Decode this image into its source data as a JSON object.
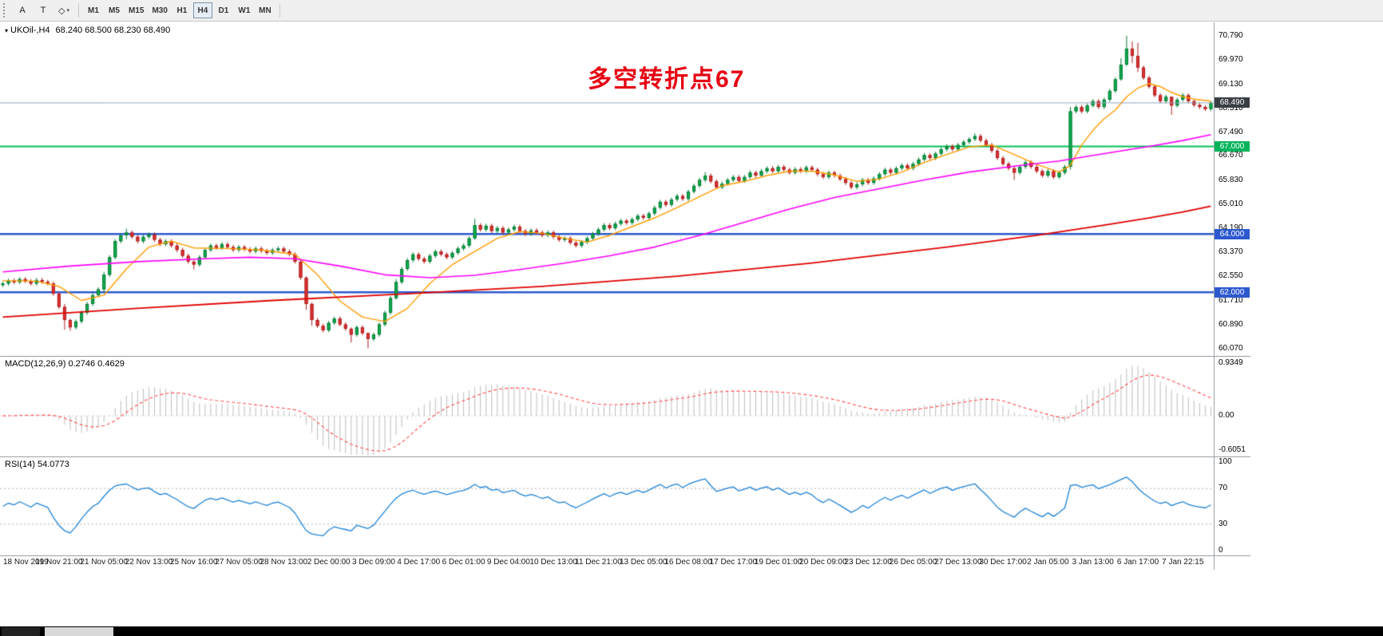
{
  "toolbar": {
    "tools": [
      {
        "name": "text-label-tool",
        "glyph": "A"
      },
      {
        "name": "text-box-tool",
        "glyph": "T"
      },
      {
        "name": "drawing-tools-dropdown",
        "glyph": "◇",
        "caret": "▾"
      }
    ],
    "timeframes": [
      "M1",
      "M5",
      "M15",
      "M30",
      "H1",
      "H4",
      "D1",
      "W1",
      "MN"
    ],
    "active_timeframe": "H4"
  },
  "chart": {
    "symbol_label": "UKOil-,H4",
    "ohlc_text": "68.240 68.500 68.230 68.490",
    "annotation_text": "多空转折点67",
    "annotation_color": "#e60012",
    "price_axis_labels": [
      "70.790",
      "69.970",
      "69.130",
      "68.310",
      "67.490",
      "66.670",
      "65.830",
      "65.010",
      "64.190",
      "63.370",
      "62.550",
      "61.710",
      "60.890",
      "60.070"
    ],
    "price_range": {
      "min": 59.82,
      "max": 71.25
    },
    "price_tags": [
      {
        "text": "68.490",
        "value": 68.49,
        "bg": "#3a3f45",
        "line_color": "#8fa8bf",
        "line_width": 1,
        "kind": "current-price"
      },
      {
        "text": "67.000",
        "value": 67.0,
        "bg": "#00b35a",
        "line_color": "#00c257",
        "line_width": 2,
        "kind": "level"
      },
      {
        "text": "64.000",
        "value": 64.0,
        "bg": "#2d59cf",
        "line_color": "#2d59cf",
        "line_width": 2.5,
        "kind": "level"
      },
      {
        "text": "62.000",
        "value": 62.0,
        "bg": "#2d59cf",
        "line_color": "#2d59cf",
        "line_width": 2.5,
        "kind": "level"
      }
    ],
    "up_fill": "#0fae4e",
    "up_stroke": "#0a7a38",
    "down_fill": "#e23434",
    "down_stroke": "#aa1f1f"
  },
  "chart_data": {
    "type": "candlestick",
    "symbol": "UKOil-",
    "timeframe": "H4",
    "ohlc_current": {
      "open": 68.24,
      "high": 68.5,
      "low": 68.23,
      "close": 68.49
    },
    "y_range": [
      59.82,
      71.25
    ],
    "bars_per_label": 8,
    "first_label_bar": 2,
    "open_first": 62.25,
    "closes": [
      62.3,
      62.4,
      62.35,
      62.45,
      62.38,
      62.3,
      62.42,
      62.36,
      62.3,
      61.95,
      61.5,
      61.05,
      60.8,
      61.0,
      61.3,
      61.6,
      61.9,
      62.1,
      62.6,
      63.2,
      63.75,
      63.95,
      64.05,
      63.9,
      63.75,
      63.9,
      63.98,
      63.8,
      63.65,
      63.75,
      63.6,
      63.45,
      63.25,
      63.05,
      62.95,
      63.2,
      63.45,
      63.6,
      63.52,
      63.65,
      63.55,
      63.45,
      63.55,
      63.48,
      63.4,
      63.5,
      63.42,
      63.35,
      63.45,
      63.5,
      63.4,
      63.3,
      63.05,
      62.5,
      61.6,
      61.05,
      60.85,
      60.7,
      60.95,
      61.1,
      60.9,
      60.75,
      60.55,
      60.8,
      60.6,
      60.4,
      60.55,
      60.9,
      61.3,
      61.8,
      62.35,
      62.8,
      63.1,
      63.3,
      63.15,
      63.05,
      63.25,
      63.4,
      63.3,
      63.2,
      63.35,
      63.5,
      63.6,
      63.85,
      64.3,
      64.15,
      64.28,
      64.1,
      64.2,
      64.05,
      64.15,
      64.25,
      64.1,
      64.0,
      64.12,
      64.05,
      63.95,
      64.05,
      63.9,
      63.8,
      63.85,
      63.7,
      63.6,
      63.72,
      63.85,
      64.0,
      64.15,
      64.3,
      64.2,
      64.35,
      64.45,
      64.38,
      64.5,
      64.62,
      64.55,
      64.7,
      64.9,
      65.1,
      65.0,
      65.18,
      65.3,
      65.2,
      65.45,
      65.65,
      65.85,
      66.0,
      65.8,
      65.6,
      65.72,
      65.85,
      65.95,
      65.82,
      65.95,
      66.1,
      66.0,
      66.15,
      66.25,
      66.15,
      66.3,
      66.2,
      66.1,
      66.22,
      66.15,
      66.28,
      66.2,
      66.05,
      65.95,
      66.1,
      66.0,
      65.88,
      65.75,
      65.6,
      65.7,
      65.85,
      65.75,
      65.9,
      66.05,
      66.2,
      66.1,
      66.25,
      66.35,
      66.25,
      66.4,
      66.55,
      66.7,
      66.6,
      66.75,
      66.9,
      67.0,
      66.9,
      67.05,
      67.15,
      67.25,
      67.35,
      67.2,
      67.05,
      66.85,
      66.6,
      66.4,
      66.25,
      66.1,
      66.3,
      66.45,
      66.3,
      66.15,
      66.0,
      66.15,
      65.95,
      66.1,
      66.3,
      68.2,
      68.35,
      68.2,
      68.4,
      68.55,
      68.35,
      68.6,
      68.9,
      69.3,
      69.8,
      70.35,
      70.1,
      69.7,
      69.35,
      69.05,
      68.75,
      68.55,
      68.7,
      68.4,
      68.6,
      68.75,
      68.55,
      68.42,
      68.35,
      68.28,
      68.49
    ],
    "wick_overrides": [
      [
        11,
        61.6,
        60.72
      ],
      [
        12,
        61.1,
        60.68
      ],
      [
        18,
        62.7,
        62.0
      ],
      [
        22,
        64.18,
        63.82
      ],
      [
        34,
        63.1,
        62.78
      ],
      [
        54,
        62.55,
        61.4
      ],
      [
        55,
        61.65,
        60.85
      ],
      [
        62,
        60.8,
        60.28
      ],
      [
        65,
        60.62,
        60.08
      ],
      [
        70,
        62.45,
        61.75
      ],
      [
        84,
        64.52,
        63.8
      ],
      [
        125,
        66.12,
        65.78
      ],
      [
        173,
        67.45,
        67.18
      ],
      [
        180,
        66.32,
        65.85
      ],
      [
        190,
        68.35,
        66.2
      ],
      [
        199,
        70.02,
        69.25
      ],
      [
        200,
        70.79,
        69.75
      ],
      [
        201,
        70.6,
        69.85
      ],
      [
        202,
        70.55,
        69.55
      ],
      [
        208,
        68.62,
        68.08
      ]
    ],
    "moving_averages": [
      {
        "name": "ma-fast",
        "color": "#ff9c00",
        "width": 1.4,
        "points": [
          [
            0,
            62.4
          ],
          [
            6,
            62.38
          ],
          [
            10,
            62.2
          ],
          [
            14,
            61.72
          ],
          [
            18,
            61.9
          ],
          [
            22,
            62.8
          ],
          [
            26,
            63.55
          ],
          [
            30,
            63.75
          ],
          [
            34,
            63.52
          ],
          [
            40,
            63.5
          ],
          [
            46,
            63.45
          ],
          [
            52,
            63.3
          ],
          [
            56,
            62.6
          ],
          [
            60,
            61.7
          ],
          [
            64,
            61.15
          ],
          [
            68,
            61.0
          ],
          [
            72,
            61.45
          ],
          [
            76,
            62.3
          ],
          [
            80,
            62.95
          ],
          [
            84,
            63.4
          ],
          [
            88,
            63.85
          ],
          [
            92,
            64.08
          ],
          [
            96,
            64.02
          ],
          [
            100,
            63.85
          ],
          [
            104,
            63.72
          ],
          [
            108,
            63.95
          ],
          [
            112,
            64.25
          ],
          [
            116,
            64.55
          ],
          [
            120,
            64.9
          ],
          [
            124,
            65.28
          ],
          [
            128,
            65.65
          ],
          [
            132,
            65.8
          ],
          [
            136,
            66.0
          ],
          [
            140,
            66.15
          ],
          [
            144,
            66.15
          ],
          [
            148,
            66.02
          ],
          [
            152,
            65.8
          ],
          [
            156,
            65.88
          ],
          [
            160,
            66.12
          ],
          [
            164,
            66.45
          ],
          [
            168,
            66.72
          ],
          [
            172,
            66.98
          ],
          [
            176,
            67.05
          ],
          [
            180,
            66.72
          ],
          [
            184,
            66.38
          ],
          [
            188,
            66.12
          ],
          [
            190,
            66.35
          ],
          [
            192,
            67.05
          ],
          [
            194,
            67.55
          ],
          [
            196,
            67.95
          ],
          [
            198,
            68.25
          ],
          [
            200,
            68.7
          ],
          [
            202,
            69.0
          ],
          [
            204,
            69.15
          ],
          [
            206,
            69.05
          ],
          [
            208,
            68.85
          ],
          [
            210,
            68.7
          ],
          [
            212,
            68.62
          ],
          [
            215,
            68.55
          ]
        ]
      },
      {
        "name": "ma-mid",
        "color": "#ff00ff",
        "width": 1.6,
        "points": [
          [
            0,
            62.7
          ],
          [
            12,
            62.9
          ],
          [
            24,
            63.05
          ],
          [
            36,
            63.15
          ],
          [
            44,
            63.2
          ],
          [
            52,
            63.15
          ],
          [
            60,
            62.9
          ],
          [
            68,
            62.6
          ],
          [
            76,
            62.5
          ],
          [
            84,
            62.58
          ],
          [
            92,
            62.78
          ],
          [
            100,
            63.0
          ],
          [
            108,
            63.25
          ],
          [
            116,
            63.55
          ],
          [
            124,
            63.95
          ],
          [
            132,
            64.4
          ],
          [
            140,
            64.85
          ],
          [
            148,
            65.25
          ],
          [
            156,
            65.55
          ],
          [
            164,
            65.85
          ],
          [
            172,
            66.12
          ],
          [
            180,
            66.32
          ],
          [
            188,
            66.5
          ],
          [
            196,
            66.75
          ],
          [
            204,
            67.0
          ],
          [
            210,
            67.2
          ],
          [
            215,
            67.4
          ]
        ]
      },
      {
        "name": "ma-slow",
        "color": "#e00000",
        "width": 1.8,
        "points": [
          [
            0,
            61.15
          ],
          [
            24,
            61.45
          ],
          [
            48,
            61.72
          ],
          [
            72,
            61.95
          ],
          [
            96,
            62.2
          ],
          [
            120,
            62.55
          ],
          [
            144,
            63.0
          ],
          [
            168,
            63.55
          ],
          [
            184,
            63.95
          ],
          [
            196,
            64.3
          ],
          [
            204,
            64.55
          ],
          [
            210,
            64.75
          ],
          [
            215,
            64.95
          ]
        ]
      }
    ],
    "horizontal_levels": [
      62.0,
      64.0,
      67.0
    ],
    "current_price": 68.49
  },
  "macd": {
    "label": "MACD(12,26,9) 0.2746 0.4629",
    "params": [
      12,
      26,
      9
    ],
    "values": [
      0.2746,
      0.4629
    ],
    "axis_labels": [
      "0.9349",
      "0.00",
      "-0.6051"
    ],
    "range": {
      "min": -0.72,
      "max": 1.05
    },
    "histogram_color": "#bdbdbd",
    "signal_color": "#ff4a4a"
  },
  "rsi": {
    "label": "RSI(14) 54.0773",
    "period": 14,
    "value": 54.0773,
    "axis_labels": [
      "100",
      "70",
      "30",
      "0"
    ],
    "levels": [
      70,
      30
    ],
    "range": {
      "min": -5,
      "max": 105
    },
    "line_color": "#1e82d6"
  },
  "time_axis": {
    "labels": [
      "18 Nov 2019",
      "19 Nov 21:00",
      "21 Nov 05:00",
      "22 Nov 13:00",
      "25 Nov 16:00",
      "27 Nov 05:00",
      "28 Nov 13:00",
      "2 Dec 00:00",
      "3 Dec 09:00",
      "4 Dec 17:00",
      "6 Dec 01:00",
      "9 Dec 04:00",
      "10 Dec 13:00",
      "11 Dec 21:00",
      "13 Dec 05:00",
      "16 Dec 08:00",
      "17 Dec 17:00",
      "19 Dec 01:00",
      "20 Dec 09:00",
      "23 Dec 12:00",
      "26 Dec 05:00",
      "27 Dec 13:00",
      "30 Dec 17:00",
      "2 Jan 05:00",
      "3 Jan 13:00",
      "6 Jan 17:00",
      "7 Jan 22:15"
    ]
  },
  "bottom_bar": {
    "bg": "#000000"
  }
}
